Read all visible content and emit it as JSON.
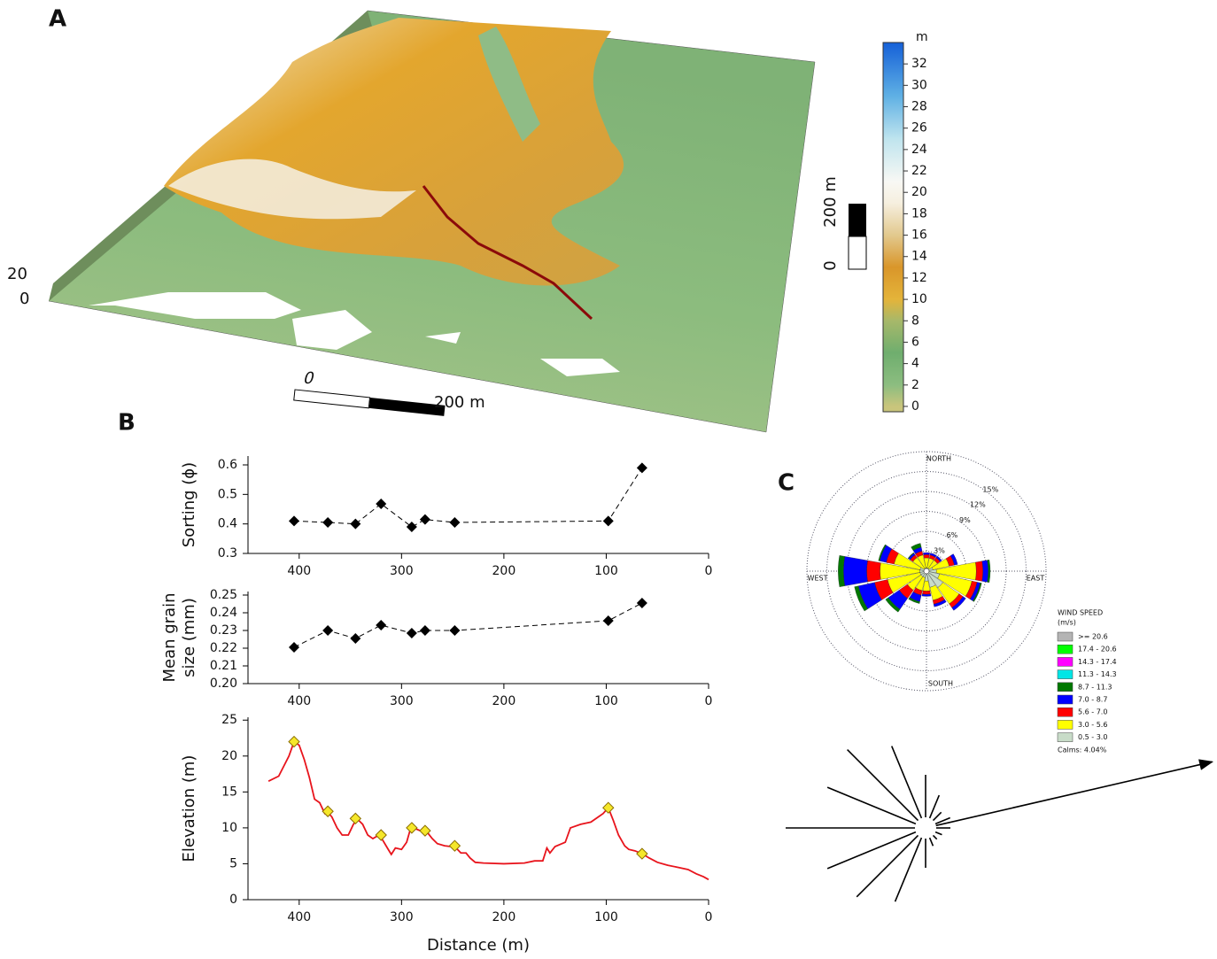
{
  "chart_data": [
    {
      "type": "map",
      "panel": "A",
      "colorbar": {
        "label": "m",
        "lim": [
          -0.5,
          34
        ],
        "ticks": [
          0,
          2,
          4,
          6,
          8,
          10,
          12,
          14,
          16,
          18,
          20,
          22,
          24,
          26,
          28,
          30,
          32
        ]
      },
      "scale_x": [
        "0",
        "200 m"
      ],
      "scale_y": [
        "0",
        "200 m"
      ],
      "z_ticks": [
        "20",
        "0"
      ]
    },
    {
      "type": "line",
      "panel": "B",
      "ylabel": [
        "Sorting (ϕ)"
      ],
      "xlim": [
        450,
        0
      ],
      "ylim": [
        0.3,
        0.63
      ],
      "xticks": [
        400,
        300,
        200,
        100,
        0
      ],
      "yticks": [
        0.3,
        0.4,
        0.5,
        0.6
      ],
      "series": [
        {
          "color": "#000000",
          "line_style": "dashed",
          "marker": "diamond",
          "x": [
            405,
            372,
            345,
            320,
            290,
            277,
            248,
            98,
            65
          ],
          "values": [
            0.41,
            0.405,
            0.4,
            0.468,
            0.39,
            0.415,
            0.405,
            0.41,
            0.59
          ]
        }
      ]
    },
    {
      "type": "line",
      "ylabel": [
        "Mean grain",
        "size (mm)"
      ],
      "xlim": [
        450,
        0
      ],
      "ylim": [
        0.2,
        0.252
      ],
      "xticks": [
        400,
        300,
        200,
        100,
        0
      ],
      "yticks": [
        {
          "value": 0.2,
          "label": "0.20"
        },
        0.21,
        0.22,
        0.23,
        0.24,
        0.25
      ],
      "series": [
        {
          "color": "#000000",
          "line_style": "dashed",
          "marker": "diamond",
          "x": [
            405,
            372,
            345,
            320,
            290,
            277,
            248,
            98,
            65
          ],
          "values": [
            0.2205,
            0.23,
            0.2255,
            0.233,
            0.2285,
            0.23,
            0.23,
            0.2355,
            0.2455
          ]
        }
      ]
    },
    {
      "type": "line",
      "ylabel": [
        "Elevation (m)"
      ],
      "xlabel": "Distance (m)",
      "xlim": [
        450,
        0
      ],
      "ylim": [
        0,
        25.4
      ],
      "xticks": [
        400,
        300,
        200,
        100,
        0
      ],
      "yticks": [
        0,
        5,
        10,
        15,
        20,
        25
      ],
      "series": [
        {
          "color": "#e8141c",
          "line_style": "solid",
          "x": [
            430,
            420,
            410,
            405,
            400,
            395,
            390,
            385,
            380,
            375,
            372,
            368,
            363,
            358,
            352,
            347,
            343,
            338,
            333,
            328,
            322,
            318,
            313,
            310,
            306,
            300,
            295,
            291,
            285,
            280,
            275,
            270,
            265,
            258,
            252,
            248,
            242,
            237,
            233,
            228,
            220,
            200,
            180,
            170,
            162,
            158,
            155,
            150,
            140,
            135,
            125,
            115,
            108,
            103,
            98,
            93,
            88,
            82,
            78,
            72,
            65,
            58,
            50,
            40,
            30,
            20,
            12,
            5,
            0
          ],
          "values": [
            16.5,
            17.2,
            20,
            22,
            21.5,
            19.5,
            17,
            14,
            13.5,
            12,
            12.2,
            11.5,
            10,
            9,
            9,
            10.5,
            11.2,
            10.5,
            9,
            8.5,
            9,
            8.2,
            7,
            6.3,
            7.2,
            7,
            8,
            10,
            9.8,
            9.5,
            9.4,
            8.5,
            7.8,
            7.5,
            7.4,
            7.4,
            6.5,
            6.5,
            5.8,
            5.2,
            5.1,
            5.0,
            5.1,
            5.4,
            5.4,
            7.2,
            6.5,
            7.4,
            8,
            10,
            10.5,
            10.8,
            11.5,
            12,
            12.8,
            11,
            9,
            7.5,
            7,
            6.8,
            6.4,
            5.8,
            5.2,
            4.8,
            4.5,
            4.2,
            3.6,
            3.2,
            2.8
          ]
        },
        {
          "color": "#f5e72a",
          "line_style": "none",
          "marker": "diamond",
          "x": [
            405,
            372,
            345,
            320,
            290,
            277,
            248,
            98,
            65
          ],
          "values": [
            22,
            12.3,
            11.3,
            9,
            10,
            9.6,
            7.5,
            12.8,
            6.4
          ]
        }
      ]
    },
    {
      "type": "windrose",
      "panel": "C",
      "directions": [
        "NORTH",
        "EAST",
        "SOUTH",
        "WEST"
      ],
      "rlim": [
        0,
        18
      ],
      "rticks": [
        {
          "value": 3,
          "label": "3%"
        },
        {
          "value": 6,
          "label": "6%"
        },
        {
          "value": 9,
          "label": "9%"
        },
        {
          "value": 12,
          "label": "12%"
        },
        {
          "value": 15,
          "label": "15%"
        }
      ],
      "legend_title": "WIND SPEED",
      "legend_unit": "(m/s)",
      "calms": "Calms: 4.04%",
      "series": [
        {
          "name": "0.5 - 3.0",
          "color": "#c8dcc8",
          "values": [
            0.5,
            0.5,
            0.5,
            1,
            1.5,
            2,
            3,
            2.5,
            1.5,
            1,
            1,
            1,
            1,
            1,
            0.5,
            0.5
          ]
        },
        {
          "name": "3.0 - 5.6",
          "color": "#ffff00",
          "values": [
            1.5,
            1.5,
            1.5,
            2.5,
            6,
            5,
            3,
            2,
            1.5,
            2,
            2.5,
            5,
            6,
            4,
            2,
            2
          ]
        },
        {
          "name": "5.6 - 7.0",
          "color": "#ff0000",
          "values": [
            0.5,
            0.5,
            0.5,
            0.8,
            1,
            0.8,
            0.7,
            0.6,
            0.5,
            0.7,
            1.5,
            2,
            2,
            1.2,
            0.5,
            0.6
          ]
        },
        {
          "name": "7.0 - 8.7",
          "color": "#0000ff",
          "values": [
            0.3,
            0.3,
            0.3,
            0.5,
            0.8,
            0.5,
            0.5,
            0.4,
            0.3,
            1,
            2,
            2.5,
            3.5,
            1,
            0.3,
            0.6
          ]
        },
        {
          "name": "8.7 - 11.3",
          "color": "#007800",
          "values": [
            0,
            0,
            0,
            0,
            0.3,
            0.2,
            0,
            0,
            0,
            0.3,
            0.5,
            0.6,
            0.8,
            0.2,
            0.1,
            0.6
          ]
        },
        {
          "name": "11.3 - 14.3",
          "color": "#00e6e6",
          "values": [
            0,
            0,
            0,
            0,
            0,
            0,
            0,
            0,
            0,
            0,
            0,
            0,
            0,
            0,
            0,
            0
          ]
        },
        {
          "name": "14.3 - 17.4",
          "color": "#ff00ff",
          "values": [
            0,
            0,
            0,
            0,
            0,
            0,
            0,
            0,
            0,
            0,
            0,
            0,
            0,
            0,
            0,
            0
          ]
        },
        {
          "name": "17.4 - 20.6",
          "color": "#00ff00",
          "values": [
            0,
            0,
            0,
            0,
            0,
            0,
            0,
            0,
            0,
            0,
            0,
            0,
            0,
            0,
            0,
            0
          ]
        },
        {
          "name": ">= 20.6",
          "color": "#b4b4b4",
          "values": [
            0,
            0,
            0,
            0,
            0,
            0,
            0,
            0,
            0,
            0,
            0,
            0,
            0,
            0,
            0,
            0
          ]
        }
      ]
    },
    {
      "type": "vectors",
      "bearings": [
        0,
        22.5,
        45,
        67.5,
        90,
        112.5,
        135,
        157.5,
        180,
        202.5,
        225,
        247.5,
        270,
        292.5,
        315,
        337.5
      ],
      "lengths": [
        60,
        40,
        25,
        30,
        28,
        20,
        18,
        22,
        45,
        90,
        110,
        120,
        158,
        120,
        125,
        100
      ],
      "resultant": {
        "bearing": 77,
        "length": 332
      }
    }
  ]
}
